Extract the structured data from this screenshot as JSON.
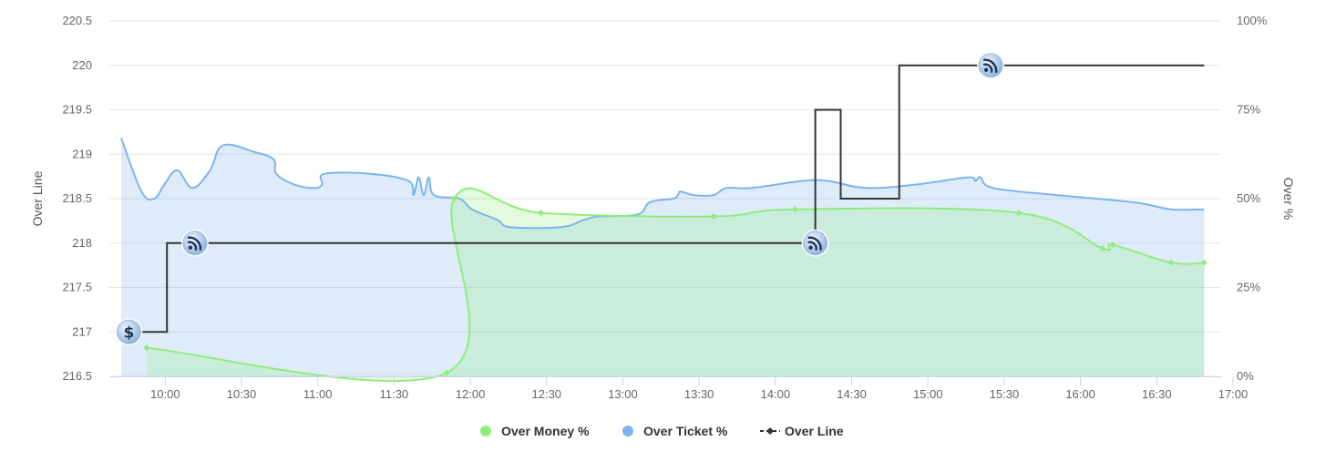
{
  "chart_data": {
    "type": "line",
    "left_axis": {
      "title": "Over Line",
      "min": 216.5,
      "max": 220.5,
      "ticks": [
        "216.5",
        "217",
        "217.5",
        "218",
        "218.5",
        "219",
        "219.5",
        "220",
        "220.5"
      ]
    },
    "right_axis": {
      "title": "Over %",
      "min": 0,
      "max": 100,
      "ticks": [
        "0%",
        "25%",
        "50%",
        "75%",
        "100%"
      ]
    },
    "x_axis": {
      "min": "09:52",
      "max": "17:00",
      "ticks": [
        "10:00",
        "10:30",
        "11:00",
        "11:30",
        "12:00",
        "12:30",
        "13:00",
        "13:30",
        "14:00",
        "14:30",
        "15:00",
        "15:30",
        "16:00",
        "16:30",
        "17:00"
      ]
    },
    "grid": true,
    "legend_position": "bottom-center",
    "legend": [
      "Over Money %",
      "Over Ticket %",
      "Over Line"
    ],
    "series": [
      {
        "name": "Over Money %",
        "axis": "right",
        "type": "area",
        "color": "#90ed7d",
        "points": [
          [
            "10:02",
            8
          ],
          [
            "12:00",
            1
          ],
          [
            "12:03",
            50
          ],
          [
            "12:37",
            46
          ],
          [
            "13:45",
            45
          ],
          [
            "14:17",
            47
          ],
          [
            "15:45",
            46
          ],
          [
            "16:18",
            36
          ],
          [
            "16:22",
            37
          ],
          [
            "16:45",
            32
          ],
          [
            "16:58",
            32
          ]
        ]
      },
      {
        "name": "Over Ticket %",
        "axis": "right",
        "type": "area",
        "color": "#7cb5ec",
        "points": [
          [
            "09:52",
            67
          ],
          [
            "10:00",
            52
          ],
          [
            "10:05",
            50
          ],
          [
            "10:09",
            54
          ],
          [
            "10:14",
            58
          ],
          [
            "10:20",
            53
          ],
          [
            "10:27",
            58
          ],
          [
            "10:32",
            65
          ],
          [
            "10:45",
            63
          ],
          [
            "10:52",
            61
          ],
          [
            "10:53",
            57
          ],
          [
            "11:00",
            54
          ],
          [
            "11:08",
            53
          ],
          [
            "11:11",
            54
          ],
          [
            "11:12",
            57
          ],
          [
            "11:30",
            57
          ],
          [
            "11:45",
            55
          ],
          [
            "11:47",
            51
          ],
          [
            "11:49",
            56
          ],
          [
            "11:51",
            51
          ],
          [
            "11:53",
            56
          ],
          [
            "11:55",
            51
          ],
          [
            "12:05",
            50
          ],
          [
            "12:10",
            47
          ],
          [
            "12:20",
            44
          ],
          [
            "12:25",
            42
          ],
          [
            "12:45",
            42
          ],
          [
            "12:54",
            44
          ],
          [
            "13:00",
            45
          ],
          [
            "13:15",
            45.5
          ],
          [
            "13:20",
            49
          ],
          [
            "13:29",
            50
          ],
          [
            "13:31",
            51
          ],
          [
            "13:32",
            52
          ],
          [
            "13:37",
            51
          ],
          [
            "13:45",
            51
          ],
          [
            "13:50",
            53
          ],
          [
            "14:00",
            53
          ],
          [
            "14:20",
            55
          ],
          [
            "14:30",
            55
          ],
          [
            "14:45",
            53
          ],
          [
            "15:05",
            54
          ],
          [
            "15:25",
            56
          ],
          [
            "15:28",
            55
          ],
          [
            "15:30",
            56
          ],
          [
            "15:35",
            53
          ],
          [
            "16:00",
            51
          ],
          [
            "16:30",
            49
          ],
          [
            "16:45",
            47
          ],
          [
            "16:58",
            47
          ]
        ]
      },
      {
        "name": "Over Line",
        "axis": "left",
        "type": "step",
        "color": "#333333",
        "points": [
          [
            "09:53",
            217
          ],
          [
            "10:10",
            217
          ],
          [
            "10:10",
            218
          ],
          [
            "14:25",
            218
          ],
          [
            "14:25",
            219.5
          ],
          [
            "14:35",
            219.5
          ],
          [
            "14:35",
            218.5
          ],
          [
            "14:58",
            218.5
          ],
          [
            "14:58",
            220
          ],
          [
            "16:58",
            220
          ]
        ]
      }
    ],
    "markers": [
      {
        "icon": "dollar-icon",
        "symbol": "$",
        "time": "09:55",
        "value": 217
      },
      {
        "icon": "wifi-feed-icon",
        "time": "10:21",
        "value": 218
      },
      {
        "icon": "wifi-feed-icon",
        "time": "14:25",
        "value": 218
      },
      {
        "icon": "wifi-feed-icon",
        "time": "15:34",
        "value": 220
      }
    ]
  }
}
